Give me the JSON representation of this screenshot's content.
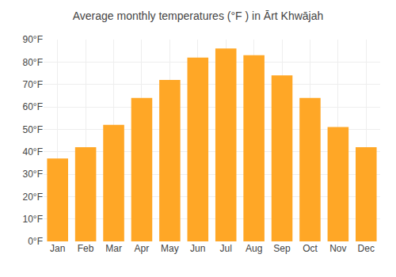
{
  "chart_data": {
    "type": "bar",
    "title": "Average monthly temperatures (°F ) in Ārt Khwājah",
    "categories": [
      "Jan",
      "Feb",
      "Mar",
      "Apr",
      "May",
      "Jun",
      "Jul",
      "Aug",
      "Sep",
      "Oct",
      "Nov",
      "Dec"
    ],
    "values": [
      37,
      42,
      52,
      64,
      72,
      82,
      86,
      83,
      74,
      64,
      51,
      42
    ],
    "color": "#FFA726",
    "ylim": [
      0,
      90
    ],
    "yticks": [
      {
        "value": 0,
        "label": "0°F"
      },
      {
        "value": 10,
        "label": "10°F"
      },
      {
        "value": 20,
        "label": "20°F"
      },
      {
        "value": 30,
        "label": "30°F"
      },
      {
        "value": 40,
        "label": "40°F"
      },
      {
        "value": 50,
        "label": "50°F"
      },
      {
        "value": 60,
        "label": "60°F"
      },
      {
        "value": 70,
        "label": "70°F"
      },
      {
        "value": 80,
        "label": "80°F"
      },
      {
        "value": 90,
        "label": "90°F"
      }
    ],
    "grid": true
  }
}
